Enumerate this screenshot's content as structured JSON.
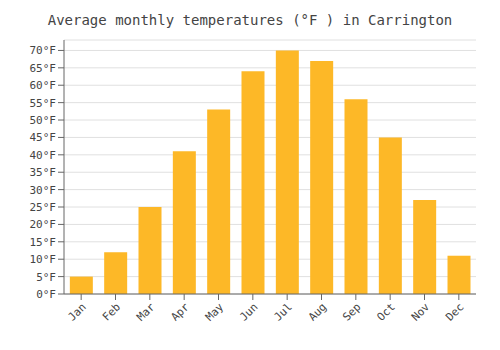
{
  "chart_data": {
    "type": "bar",
    "title": "Average monthly temperatures (°F ) in Carrington",
    "categories": [
      "Jan",
      "Feb",
      "Mar",
      "Apr",
      "May",
      "Jun",
      "Jul",
      "Aug",
      "Sep",
      "Oct",
      "Nov",
      "Dec"
    ],
    "values": [
      5,
      12,
      25,
      41,
      53,
      64,
      70,
      67,
      56,
      45,
      27,
      11
    ],
    "color": "#FDB827",
    "ylim": [
      0,
      73
    ],
    "yticks": [
      {
        "value": 0,
        "label": "0°F"
      },
      {
        "value": 5,
        "label": "5°F"
      },
      {
        "value": 10,
        "label": "10°F"
      },
      {
        "value": 15,
        "label": "15°F"
      },
      {
        "value": 20,
        "label": "20°F"
      },
      {
        "value": 25,
        "label": "25°F"
      },
      {
        "value": 30,
        "label": "30°F"
      },
      {
        "value": 35,
        "label": "35°F"
      },
      {
        "value": 40,
        "label": "40°F"
      },
      {
        "value": 45,
        "label": "45°F"
      },
      {
        "value": 50,
        "label": "50°F"
      },
      {
        "value": 55,
        "label": "55°F"
      },
      {
        "value": 60,
        "label": "60°F"
      },
      {
        "value": 65,
        "label": "65°F"
      },
      {
        "value": 70,
        "label": "70°F"
      }
    ],
    "grid": true
  }
}
